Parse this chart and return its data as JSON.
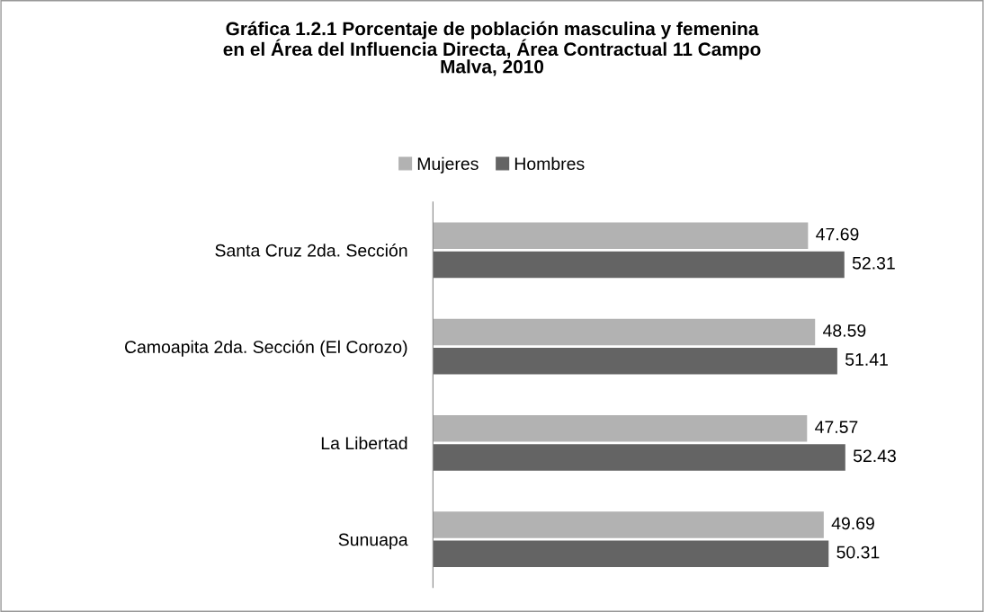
{
  "chart_data": {
    "type": "bar",
    "orientation": "horizontal",
    "title": "Gráfica 1.2.1 Porcentaje de población masculina y femenina\nen el Área del Influencia Directa, Área Contractual 11 Campo\nMalva, 2010",
    "categories": [
      "Santa Cruz 2da. Sección",
      "Camoapita 2da. Sección (El Corozo)",
      "La Libertad",
      "Sunuapa"
    ],
    "series": [
      {
        "name": "Mujeres",
        "color": "#b2b2b2",
        "values": [
          47.69,
          48.59,
          47.57,
          49.69
        ]
      },
      {
        "name": "Hombres",
        "color": "#646464",
        "values": [
          52.31,
          51.41,
          52.43,
          50.31
        ]
      }
    ],
    "tick_labels": "y",
    "data_labels": true,
    "legend": "top",
    "grid": false
  }
}
